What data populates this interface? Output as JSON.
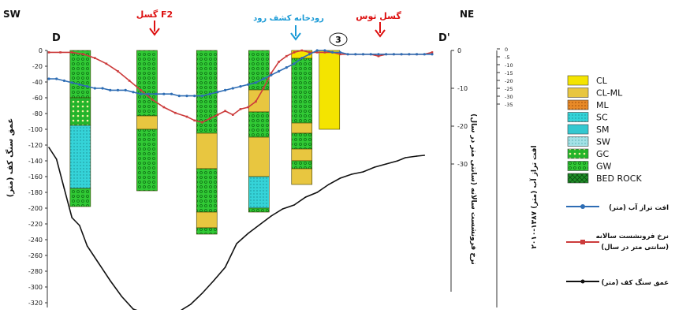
{
  "section": {
    "left_dir": "SW",
    "right_dir": "NE",
    "left_label": "D",
    "right_label": "D'",
    "marker_number": "3"
  },
  "annotations": {
    "fault_f2": "گسل F2",
    "river": "رودخانه کشف رود",
    "fault_toos": "گسل توس"
  },
  "colors": {
    "water_level": "#2e6db4",
    "subsidence": "#cc3b3b",
    "bedrock": "#111111",
    "fault_arrow": "#dd1111",
    "river_arrow": "#1a9ad6"
  },
  "axes": {
    "left_title": "عمق سنگ کف (متر)",
    "left_ticks": [
      0,
      -20,
      -40,
      -60,
      -80,
      -100,
      -120,
      -140,
      -160,
      -180,
      -200,
      -220,
      -240,
      -260,
      -280,
      -300,
      -320,
      -340
    ],
    "mid_title": "نرخ فرونشست سالانه (سانتی متر در سال)",
    "mid_ticks": [
      0,
      -10,
      -20,
      -30
    ],
    "right_title": "افت تراز آب (متر) ۱۳۸۷-۲۰۱۰",
    "right_ticks": [
      0,
      -5,
      -10,
      -15,
      -20,
      -25,
      -30,
      -35
    ]
  },
  "legend": {
    "soils": [
      {
        "label": "CL",
        "color": "#f4e400",
        "pattern": "solid"
      },
      {
        "label": "CL-ML",
        "color": "#e8c640",
        "pattern": "solid"
      },
      {
        "label": "ML",
        "color": "#e8821a",
        "pattern": "dots"
      },
      {
        "label": "SC",
        "color": "#2fd2d8",
        "pattern": "dots"
      },
      {
        "label": "SM",
        "color": "#33c8d0",
        "pattern": "solid"
      },
      {
        "label": "SW",
        "color": "#9adfe4",
        "pattern": "dots"
      },
      {
        "label": "GC",
        "color": "#20b82a",
        "pattern": "circles"
      },
      {
        "label": "GW",
        "color": "#3ad03c",
        "pattern": "circles"
      },
      {
        "label": "BED ROCK",
        "color": "#1f8f28",
        "pattern": "cross"
      }
    ],
    "lines": [
      {
        "label": "افت تراز آب (متر)",
        "color": "#2e6db4"
      },
      {
        "label": "نرخ فرونشست سالانه",
        "label2": "(سانتی متر در سال)",
        "color": "#cc3b3b"
      },
      {
        "label": "عمق سنگ کف (متر)",
        "color": "#111111"
      }
    ]
  },
  "chart_data": {
    "type": "line",
    "x_range": [
      0,
      100
    ],
    "depth_ylim": [
      -340,
      0
    ],
    "boreholes": [
      {
        "x": 8.2,
        "layers": [
          {
            "top": 0,
            "bottom": -60,
            "soil": "GW"
          },
          {
            "top": -60,
            "bottom": -95,
            "soil": "GC"
          },
          {
            "top": -95,
            "bottom": -175,
            "soil": "SC"
          },
          {
            "top": -175,
            "bottom": -198,
            "soil": "GW"
          }
        ]
      },
      {
        "x": 25.6,
        "layers": [
          {
            "top": 0,
            "bottom": -83,
            "soil": "GW"
          },
          {
            "top": -83,
            "bottom": -100,
            "soil": "CL-ML"
          },
          {
            "top": -100,
            "bottom": -178,
            "soil": "GW"
          }
        ]
      },
      {
        "x": 41.2,
        "layers": [
          {
            "top": 0,
            "bottom": -105,
            "soil": "GW"
          },
          {
            "top": -105,
            "bottom": -150,
            "soil": "CL-ML"
          },
          {
            "top": -150,
            "bottom": -205,
            "soil": "GW"
          },
          {
            "top": -205,
            "bottom": -225,
            "soil": "CL-ML"
          },
          {
            "top": -225,
            "bottom": -233,
            "soil": "GW"
          }
        ]
      },
      {
        "x": 54.8,
        "layers": [
          {
            "top": 0,
            "bottom": -50,
            "soil": "GW"
          },
          {
            "top": -50,
            "bottom": -78,
            "soil": "CL-ML"
          },
          {
            "top": -78,
            "bottom": -110,
            "soil": "GW"
          },
          {
            "top": -110,
            "bottom": -160,
            "soil": "CL-ML"
          },
          {
            "top": -160,
            "bottom": -200,
            "soil": "SC"
          },
          {
            "top": -200,
            "bottom": -205,
            "soil": "GW"
          }
        ]
      },
      {
        "x": 66.0,
        "layers": [
          {
            "top": 0,
            "bottom": -10,
            "soil": "CL"
          },
          {
            "top": -10,
            "bottom": -92,
            "soil": "GW"
          },
          {
            "top": -92,
            "bottom": -105,
            "soil": "CL-ML"
          },
          {
            "top": -105,
            "bottom": -125,
            "soil": "GW"
          },
          {
            "top": -125,
            "bottom": -140,
            "soil": "CL-ML"
          },
          {
            "top": -140,
            "bottom": -150,
            "soil": "GW"
          },
          {
            "top": -150,
            "bottom": -170,
            "soil": "CL-ML"
          }
        ]
      },
      {
        "x": 73.2,
        "layers": [
          {
            "top": 0,
            "bottom": -100,
            "soil": "CL"
          }
        ]
      }
    ],
    "bedrock_depth": {
      "x": [
        0,
        2,
        4,
        6,
        8,
        10,
        13,
        16,
        19,
        22,
        25,
        28,
        31,
        34,
        37,
        40,
        43,
        46,
        49,
        52,
        55,
        58,
        61,
        64,
        67,
        70,
        73,
        76,
        79,
        82,
        85,
        88,
        91,
        93,
        96,
        98
      ],
      "y": [
        -123,
        -138,
        -175,
        -212,
        -222,
        -248,
        -270,
        -292,
        -312,
        -328,
        -333,
        -338,
        -337,
        -331,
        -322,
        -308,
        -292,
        -275,
        -245,
        -232,
        -221,
        -210,
        -201,
        -196,
        -186,
        -180,
        -170,
        -162,
        -157,
        -154,
        -148,
        -144,
        -140,
        -136,
        -134,
        -133
      ]
    },
    "water_level_drop": {
      "x": [
        0,
        2,
        4,
        6,
        8,
        10,
        12,
        14,
        16,
        18,
        20,
        22,
        24,
        26,
        28,
        30,
        32,
        34,
        36,
        38,
        40,
        42,
        44,
        46,
        48,
        50,
        52,
        54,
        56,
        58,
        60,
        62,
        64,
        66,
        68,
        70,
        72,
        74,
        76,
        78,
        80,
        82,
        84,
        86,
        88,
        90,
        92,
        94,
        96,
        98,
        100
      ],
      "y": [
        -7.5,
        -7.5,
        -8,
        -8.5,
        -9,
        -9.5,
        -10,
        -10,
        -10.5,
        -10.5,
        -10.5,
        -11,
        -11.5,
        -11.5,
        -11.5,
        -11.5,
        -11.5,
        -12,
        -12,
        -12,
        -12,
        -11.5,
        -11,
        -10.5,
        -10,
        -9.5,
        -9,
        -8.5,
        -7.5,
        -6.5,
        -5.5,
        -4.5,
        -3.5,
        -2,
        -1,
        0,
        0,
        -0.5,
        -0.5,
        -1,
        -1,
        -1,
        -1,
        -1,
        -1,
        -1,
        -1,
        -1,
        -1,
        -1,
        -1
      ]
    },
    "subsidence_rate": {
      "x": [
        0,
        3,
        6,
        9,
        12,
        15,
        18,
        21,
        24,
        27,
        30,
        33,
        36,
        38,
        40,
        42,
        44,
        46,
        48,
        50,
        52,
        54,
        56,
        58,
        60,
        62,
        64,
        66,
        68,
        70,
        72,
        74,
        76,
        78,
        80,
        82,
        84,
        86,
        88,
        90,
        92,
        94,
        96,
        98,
        100
      ],
      "y": [
        -0.5,
        -0.5,
        -0.5,
        -1,
        -2,
        -3.5,
        -5.5,
        -8,
        -10.5,
        -13,
        -15,
        -16.5,
        -17.5,
        -18.5,
        -19,
        -18,
        -17,
        -16,
        -17,
        -15.5,
        -15,
        -13.5,
        -10,
        -6,
        -3,
        -1.5,
        -0.5,
        0,
        -0.5,
        -0.5,
        -0.5,
        -0.5,
        -1,
        -1,
        -1,
        -1,
        -1,
        -1.5,
        -1,
        -1,
        -1,
        -1,
        -1,
        -1,
        -0.5
      ]
    }
  }
}
